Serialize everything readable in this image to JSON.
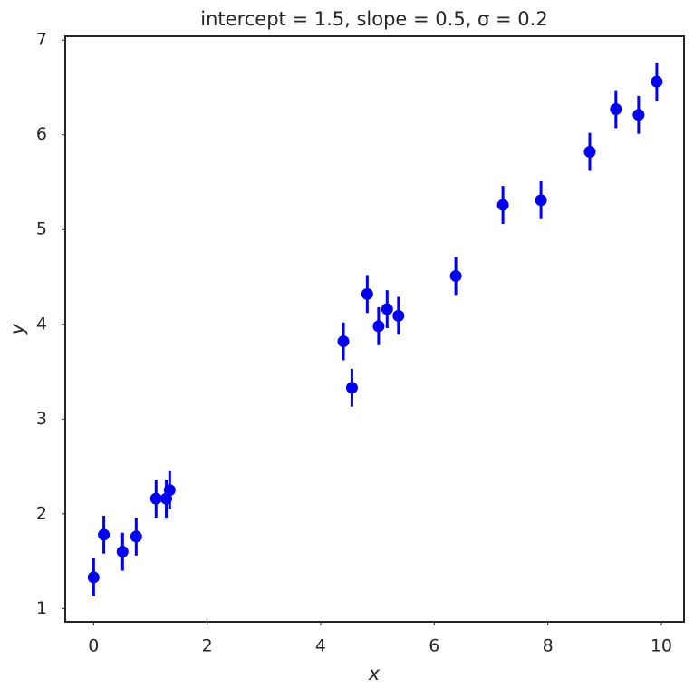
{
  "chart_data": {
    "type": "errorbar",
    "title": "intercept  = 1.5, slope  = 0.5,  σ = 0.2",
    "xlabel": "x",
    "ylabel": "y",
    "x": [
      0,
      0.18,
      0.51,
      0.75,
      1.1,
      1.28,
      1.34,
      4.4,
      4.55,
      4.82,
      5.02,
      5.17,
      5.37,
      6.38,
      7.21,
      7.88,
      8.74,
      9.2,
      9.6,
      9.92
    ],
    "values": [
      1.33,
      1.78,
      1.6,
      1.76,
      2.16,
      2.16,
      2.25,
      3.82,
      3.33,
      4.32,
      3.98,
      4.16,
      4.09,
      4.51,
      5.26,
      5.31,
      5.82,
      6.27,
      6.21,
      6.56
    ],
    "errors": [
      0.2,
      0.2,
      0.2,
      0.2,
      0.2,
      0.2,
      0.2,
      0.2,
      0.2,
      0.2,
      0.2,
      0.2,
      0.2,
      0.2,
      0.2,
      0.2,
      0.2,
      0.2,
      0.2,
      0.2
    ],
    "color": "#0000ee",
    "xlim": [
      -0.5,
      10.4
    ],
    "ylim": [
      0.86,
      7.04
    ],
    "xticks": [
      0,
      2,
      4,
      6,
      8,
      10
    ],
    "yticks": [
      1,
      2,
      3,
      4,
      5,
      6,
      7
    ]
  }
}
